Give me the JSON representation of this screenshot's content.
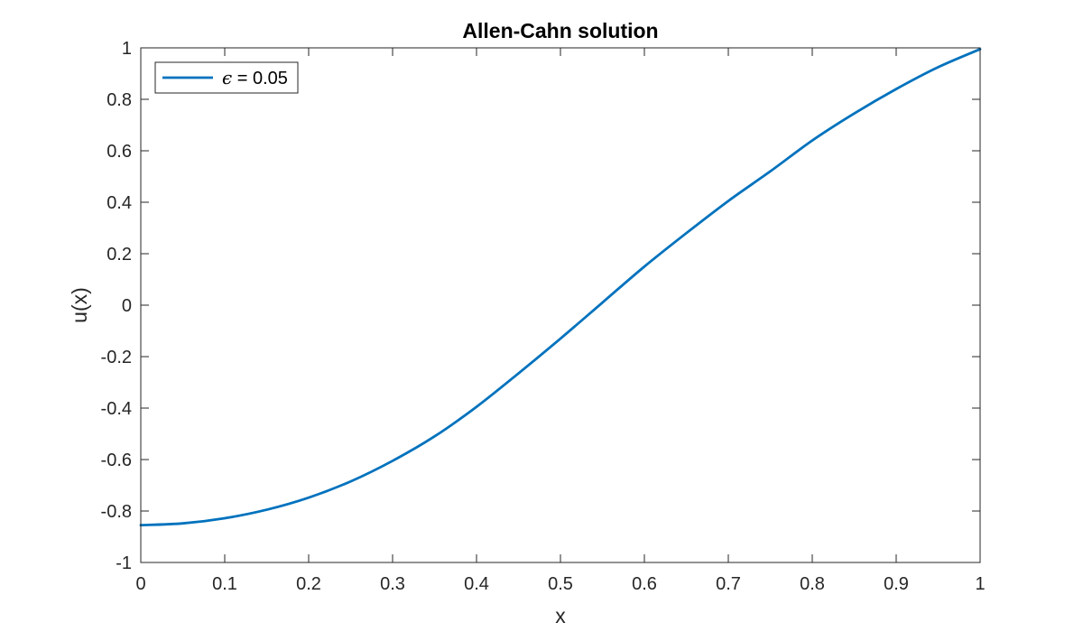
{
  "chart_data": {
    "type": "line",
    "title": "Allen-Cahn solution",
    "xlabel": "x",
    "ylabel": "u(x)",
    "xlim": [
      0,
      1
    ],
    "ylim": [
      -1,
      1
    ],
    "xticks": [
      0,
      0.1,
      0.2,
      0.3,
      0.4,
      0.5,
      0.6,
      0.7,
      0.8,
      0.9,
      1
    ],
    "xtick_labels": [
      "0",
      "0.1",
      "0.2",
      "0.3",
      "0.4",
      "0.5",
      "0.6",
      "0.7",
      "0.8",
      "0.9",
      "1"
    ],
    "yticks": [
      -1,
      -0.8,
      -0.6,
      -0.4,
      -0.2,
      0,
      0.2,
      0.4,
      0.6,
      0.8,
      1
    ],
    "ytick_labels": [
      "-1",
      "-0.8",
      "-0.6",
      "-0.4",
      "-0.2",
      "0",
      "0.2",
      "0.4",
      "0.6",
      "0.8",
      "1"
    ],
    "grid": false,
    "legend_position": "top-left",
    "legend": {
      "symbol": "ϵ",
      "text": " = 0.05"
    },
    "series": [
      {
        "color": "#0072BD",
        "x": [
          0,
          0.05,
          0.1,
          0.15,
          0.2,
          0.25,
          0.3,
          0.35,
          0.4,
          0.45,
          0.5,
          0.55,
          0.6,
          0.65,
          0.7,
          0.75,
          0.8,
          0.85,
          0.9,
          0.95,
          1
        ],
        "y": [
          -0.855,
          -0.848,
          -0.828,
          -0.795,
          -0.748,
          -0.685,
          -0.605,
          -0.51,
          -0.395,
          -0.265,
          -0.13,
          0.01,
          0.15,
          0.28,
          0.405,
          0.52,
          0.64,
          0.745,
          0.84,
          0.925,
          0.995
        ]
      }
    ]
  }
}
